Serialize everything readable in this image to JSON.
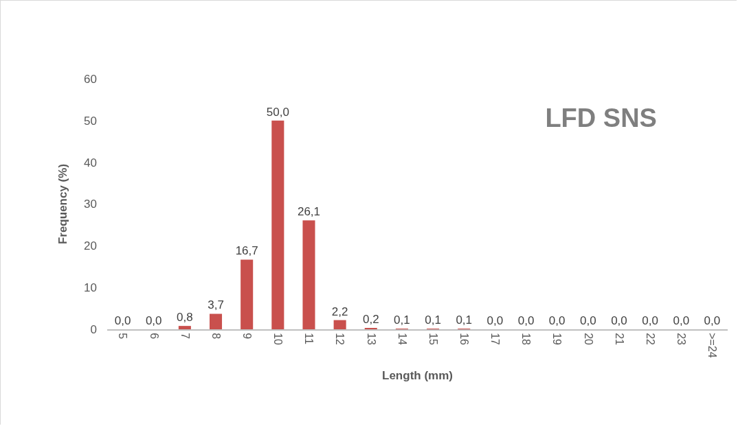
{
  "chart_data": {
    "type": "bar",
    "title": "LFD SNS",
    "xlabel": "Length (mm)",
    "ylabel": "Frequency (%)",
    "categories": [
      "5",
      "6",
      "7",
      "8",
      "9",
      "10",
      "11",
      "12",
      "13",
      "14",
      "15",
      "16",
      "17",
      "18",
      "19",
      "20",
      "21",
      "22",
      "23",
      ">=24"
    ],
    "values": [
      0,
      0,
      0.8,
      3.7,
      16.7,
      50,
      26.1,
      2.2,
      0.2,
      0.1,
      0.1,
      0.1,
      0,
      0,
      0,
      0,
      0,
      0,
      0,
      0
    ],
    "value_labels": [
      "0,0",
      "0,0",
      "0,8",
      "3,7",
      "16,7",
      "50,0",
      "26,1",
      "2,2",
      "0,2",
      "0,1",
      "0,1",
      "0,1",
      "0,0",
      "0,0",
      "0,0",
      "0,0",
      "0,0",
      "0,0",
      "0,0",
      "0,0"
    ],
    "color": "#c9504d",
    "ylim": [
      0,
      60
    ],
    "yticks": [
      0,
      10,
      20,
      30,
      40,
      50,
      60
    ],
    "grid": false,
    "legend": false
  }
}
